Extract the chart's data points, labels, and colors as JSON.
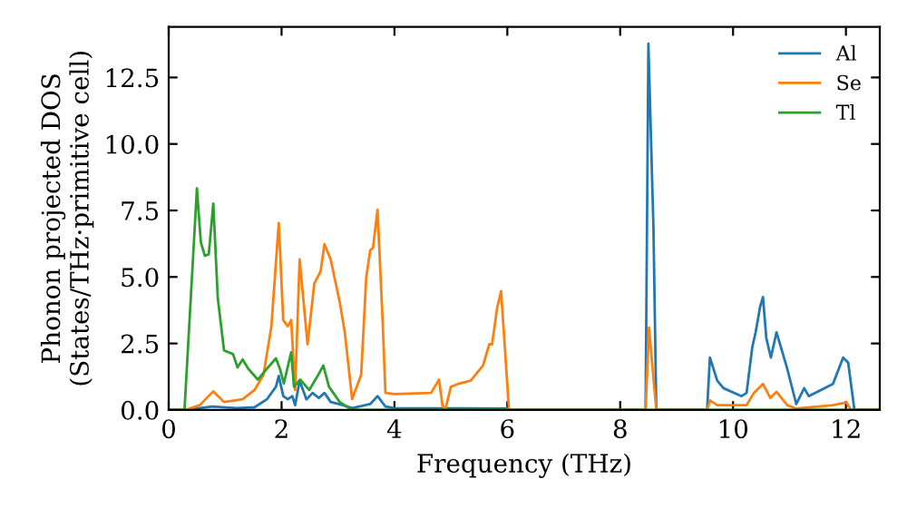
{
  "chart_data": {
    "type": "line",
    "xlabel": "Frequency (THz)",
    "ylabel": "Phonon projected DOS\n(States/THz·primitive cell)",
    "xlim": [
      0,
      12.6
    ],
    "ylim": [
      0,
      14.4
    ],
    "xticks": [
      0,
      2,
      4,
      6,
      8,
      10,
      12
    ],
    "yticks": [
      {
        "value": 0,
        "label": "0.0"
      },
      {
        "value": 2.5,
        "label": "2.5"
      },
      {
        "value": 5,
        "label": "5.0"
      },
      {
        "value": 7.5,
        "label": "7.5"
      },
      {
        "value": 10,
        "label": "10.0"
      },
      {
        "value": 12.5,
        "label": "12.5"
      }
    ],
    "legend": "top right",
    "grid": false,
    "marker": "none",
    "line_style": "solid",
    "series": [
      {
        "name": "Al",
        "color": "#1f77b4",
        "x": [
          0,
          0.3,
          0.77,
          1.2,
          1.52,
          1.74,
          1.9,
          1.95,
          2.03,
          2.11,
          2.19,
          2.24,
          2.32,
          2.44,
          2.55,
          2.66,
          2.76,
          2.87,
          3.09,
          3.25,
          3.57,
          3.7,
          3.84,
          4.0,
          6.0,
          6.05,
          8.45,
          8.5,
          8.59,
          8.64,
          9.54,
          9.59,
          9.72,
          9.83,
          10.15,
          10.24,
          10.34,
          10.4,
          10.48,
          10.53,
          10.59,
          10.67,
          10.77,
          10.96,
          11.12,
          11.26,
          11.34,
          11.77,
          11.95,
          12.04,
          12.15,
          12.6
        ],
        "values": [
          0,
          0,
          0.13,
          0.07,
          0.1,
          0.4,
          0.87,
          1.28,
          0.52,
          0.4,
          0.52,
          0.18,
          1.1,
          0.4,
          0.64,
          0.45,
          0.64,
          0.3,
          0.18,
          0.07,
          0.22,
          0.52,
          0.13,
          0.07,
          0.05,
          0,
          0,
          13.77,
          6.8,
          0,
          0,
          1.97,
          1.1,
          0.82,
          0.52,
          0.64,
          2.35,
          2.92,
          3.88,
          4.25,
          2.69,
          1.97,
          2.92,
          1.55,
          0.22,
          0.82,
          0.52,
          0.98,
          1.97,
          1.78,
          0,
          0
        ]
      },
      {
        "name": "Se",
        "color": "#ff7f0e",
        "x": [
          0,
          0.3,
          0.55,
          0.79,
          0.98,
          1.31,
          1.52,
          1.68,
          1.82,
          1.95,
          2.03,
          2.11,
          2.17,
          2.24,
          2.32,
          2.46,
          2.58,
          2.69,
          2.76,
          2.87,
          3.03,
          3.12,
          3.25,
          3.41,
          3.5,
          3.57,
          3.62,
          3.7,
          3.79,
          3.84,
          4.0,
          4.65,
          4.79,
          4.85,
          4.9,
          5.0,
          5.13,
          5.35,
          5.57,
          5.68,
          5.73,
          5.82,
          5.89,
          6.03,
          8.45,
          8.51,
          8.64,
          9.54,
          9.59,
          9.72,
          10.24,
          10.37,
          10.53,
          10.66,
          10.77,
          10.96,
          11.12,
          11.77,
          12.01,
          12.09,
          12.6
        ],
        "values": [
          0,
          0,
          0.18,
          0.7,
          0.3,
          0.4,
          0.75,
          1.32,
          3.15,
          7.03,
          3.38,
          3.15,
          3.38,
          0.75,
          5.66,
          2.47,
          4.75,
          5.2,
          6.23,
          5.66,
          4.06,
          2.92,
          0.41,
          1.32,
          4.98,
          6.0,
          6.1,
          7.53,
          3.38,
          0.64,
          0.6,
          0.64,
          1.14,
          0.18,
          0,
          0.87,
          0.98,
          1.1,
          1.67,
          2.47,
          2.47,
          3.84,
          4.47,
          0,
          0,
          3.1,
          0,
          0,
          0.36,
          0.18,
          0.18,
          0.64,
          0.98,
          0.45,
          0.68,
          0.18,
          0.05,
          0.18,
          0.28,
          0,
          0
        ]
      },
      {
        "name": "Tl",
        "color": "#2ca02c",
        "x": [
          0,
          0.28,
          0.5,
          0.57,
          0.64,
          0.71,
          0.79,
          0.87,
          0.98,
          1.14,
          1.22,
          1.31,
          1.41,
          1.58,
          1.74,
          1.9,
          1.97,
          2.04,
          2.17,
          2.22,
          2.33,
          2.49,
          2.65,
          2.74,
          2.84,
          3.03,
          3.25,
          12.6
        ],
        "values": [
          0,
          0,
          8.33,
          6.3,
          5.8,
          5.85,
          7.76,
          4.2,
          2.24,
          2.1,
          1.6,
          1.9,
          1.55,
          1.14,
          1.55,
          1.94,
          1.55,
          1.0,
          2.17,
          0.87,
          1.14,
          0.75,
          1.32,
          1.67,
          0.87,
          0.3,
          0,
          0
        ]
      }
    ]
  }
}
